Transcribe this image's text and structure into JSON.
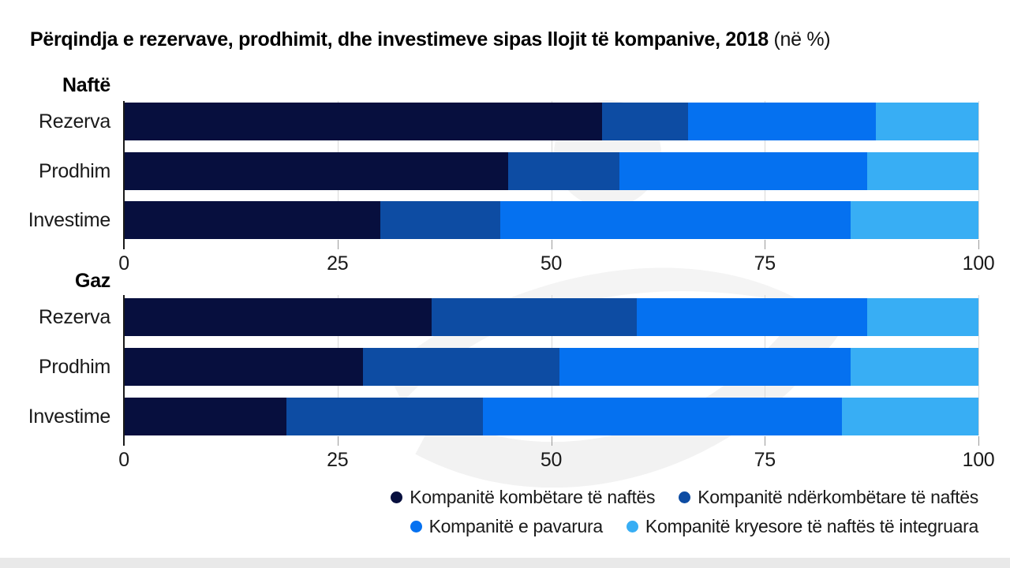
{
  "title": {
    "main": "Përqindja e rezervave, prodhimit, dhe investimeve sipas llojit të kompanive, 2018",
    "suffix": "(në %)"
  },
  "colors": {
    "navy": "#070f3e",
    "medium_blue": "#0d4ca3",
    "bright_blue": "#0571f0",
    "light_blue": "#38aef4",
    "gridline": "#d9d9d9",
    "axis": "#1a1a1a"
  },
  "legend": [
    {
      "label": "Kompanitë kombëtare të naftës",
      "color": "#070f3e"
    },
    {
      "label": "Kompanitë ndërkombëtare të naftës",
      "color": "#0d4ca3"
    },
    {
      "label": "Kompanitë e pavarura",
      "color": "#0571f0"
    },
    {
      "label": "Kompanitë kryesore të naftës të integruara",
      "color": "#38aef4"
    }
  ],
  "chart_data": [
    {
      "type": "bar",
      "stacked": true,
      "orientation": "horizontal",
      "group": "Naftë",
      "categories": [
        "Rezerva",
        "Prodhim",
        "Investime"
      ],
      "series": [
        {
          "name": "Kompanitë kombëtare të naftës",
          "values": [
            56,
            45,
            30
          ]
        },
        {
          "name": "Kompanitë ndërkombëtare të naftës",
          "values": [
            10,
            13,
            14
          ]
        },
        {
          "name": "Kompanitë e pavarura",
          "values": [
            22,
            29,
            41
          ]
        },
        {
          "name": "Kompanitë kryesore të naftës të integruara",
          "values": [
            12,
            13,
            15
          ]
        }
      ],
      "xlim": [
        0,
        100
      ],
      "xticks": [
        0,
        25,
        50,
        75,
        100
      ],
      "grid": true,
      "legend_position": "bottom-right"
    },
    {
      "type": "bar",
      "stacked": true,
      "orientation": "horizontal",
      "group": "Gaz",
      "categories": [
        "Rezerva",
        "Prodhim",
        "Investime"
      ],
      "series": [
        {
          "name": "Kompanitë kombëtare të naftës",
          "values": [
            36,
            28,
            19
          ]
        },
        {
          "name": "Kompanitë ndërkombëtare të naftës",
          "values": [
            24,
            23,
            23
          ]
        },
        {
          "name": "Kompanitë e pavarura",
          "values": [
            27,
            34,
            42
          ]
        },
        {
          "name": "Kompanitë kryesore të naftës të integruara",
          "values": [
            13,
            15,
            16
          ]
        }
      ],
      "xlim": [
        0,
        100
      ],
      "xticks": [
        0,
        25,
        50,
        75,
        100
      ],
      "grid": true,
      "legend_position": "bottom-right"
    }
  ]
}
